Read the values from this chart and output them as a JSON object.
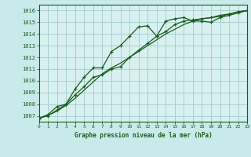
{
  "title": "Graphe pression niveau de la mer (hPa)",
  "bg_color": "#c8eaea",
  "plot_bg_color": "#d8f0f0",
  "grid_color": "#a8d0d0",
  "line_color": "#1a5c1a",
  "border_color": "#1a5c1a",
  "xlim": [
    0,
    23
  ],
  "ylim": [
    1006.5,
    1016.5
  ],
  "yticks": [
    1007,
    1008,
    1009,
    1010,
    1011,
    1012,
    1013,
    1014,
    1015,
    1016
  ],
  "xticks": [
    0,
    1,
    2,
    3,
    4,
    5,
    6,
    7,
    8,
    9,
    10,
    11,
    12,
    13,
    14,
    15,
    16,
    17,
    18,
    19,
    20,
    21,
    22,
    23
  ],
  "line1_x": [
    0,
    1,
    2,
    3,
    4,
    5,
    6,
    7,
    8,
    9,
    10,
    11,
    12,
    13,
    14,
    15,
    16,
    17,
    18,
    19,
    20,
    21,
    22,
    23
  ],
  "line1_y": [
    1006.8,
    1007.1,
    1007.8,
    1008.0,
    1009.3,
    1010.3,
    1011.1,
    1011.1,
    1012.5,
    1013.0,
    1013.8,
    1014.6,
    1014.7,
    1013.8,
    1015.1,
    1015.3,
    1015.4,
    1015.1,
    1015.1,
    1015.0,
    1015.4,
    1015.6,
    1015.8,
    1016.0
  ],
  "line2_x": [
    0,
    1,
    2,
    3,
    4,
    5,
    6,
    7,
    8,
    9,
    10,
    11,
    12,
    13,
    14,
    15,
    16,
    17,
    18,
    19,
    20,
    21,
    22,
    23
  ],
  "line2_y": [
    1006.8,
    1007.0,
    1007.5,
    1008.0,
    1008.8,
    1009.5,
    1010.3,
    1010.5,
    1011.0,
    1011.2,
    1012.0,
    1012.6,
    1013.2,
    1013.8,
    1014.2,
    1014.8,
    1015.1,
    1015.2,
    1015.3,
    1015.4,
    1015.5,
    1015.7,
    1015.9,
    1016.0
  ],
  "line3_x": [
    0,
    1,
    2,
    3,
    4,
    5,
    6,
    7,
    8,
    9,
    10,
    11,
    12,
    13,
    14,
    15,
    16,
    17,
    18,
    19,
    20,
    21,
    22,
    23
  ],
  "line3_y": [
    1006.8,
    1007.05,
    1007.4,
    1007.9,
    1008.5,
    1009.2,
    1009.9,
    1010.6,
    1011.1,
    1011.5,
    1012.0,
    1012.5,
    1013.0,
    1013.5,
    1014.0,
    1014.4,
    1014.8,
    1015.1,
    1015.3,
    1015.4,
    1015.6,
    1015.7,
    1015.9,
    1016.0
  ]
}
